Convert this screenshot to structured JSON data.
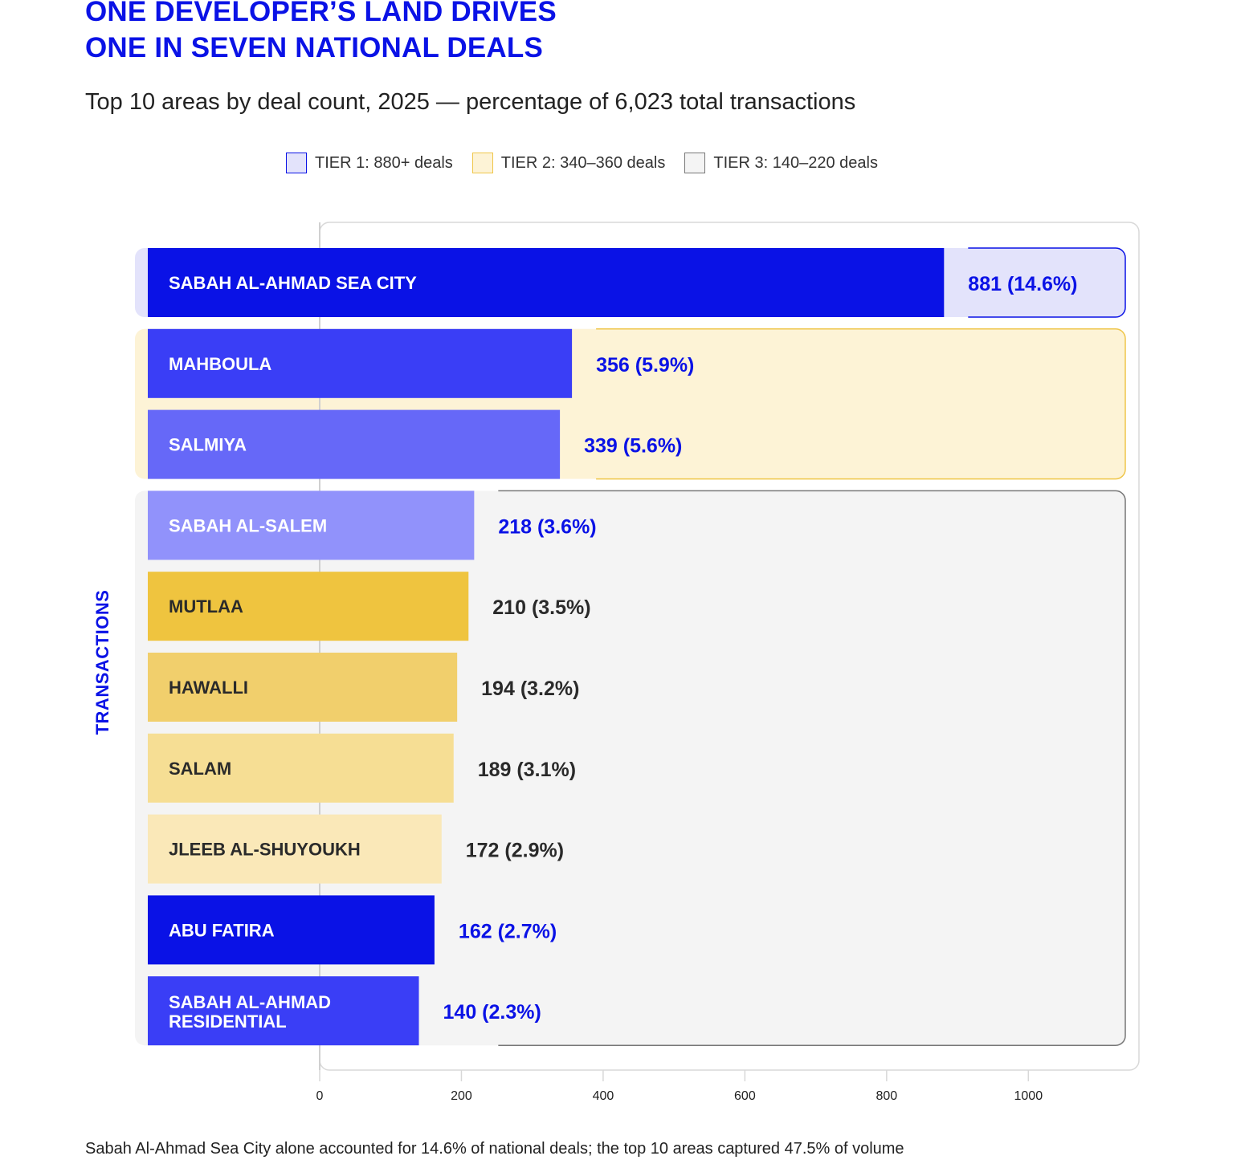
{
  "title_lines": [
    "ONE DEVELOPER’S LAND DRIVES",
    "ONE IN SEVEN NATIONAL DEALS"
  ],
  "subtitle": "Top 10 areas by deal count, 2025 — percentage of 6,023 total transactions",
  "legend": [
    {
      "label": "TIER 1: 880+ deals",
      "fill": "#e3e3fb",
      "border": "#0a12e6"
    },
    {
      "label": "TIER 2: 340–360 deals",
      "fill": "#fdf3d6",
      "border": "#efc64a"
    },
    {
      "label": "TIER 3: 140–220 deals",
      "fill": "#f4f4f4",
      "border": "#777777"
    }
  ],
  "footnote": "Sabah Al-Ahmad Sea City alone accounted for 14.6% of national deals; the top 10 areas captured 47.5% of volume",
  "chart_data": {
    "type": "bar",
    "orientation": "horizontal",
    "title": "ONE DEVELOPER’S LAND DRIVES ONE IN SEVEN NATIONAL DEALS",
    "subtitle": "Top 10 areas by deal count, 2025 — percentage of 6,023 total transactions",
    "ylabel": "TRANSACTIONS",
    "xlim": [
      0,
      1000
    ],
    "xticks": [
      0,
      200,
      400,
      600,
      800,
      1000
    ],
    "grid": false,
    "legend_position": "top",
    "categories": [
      [
        "SABAH AL-AHMAD SEA CITY"
      ],
      [
        "MAHBOULA"
      ],
      [
        "SALMIYA"
      ],
      [
        "SABAH AL-SALEM"
      ],
      [
        "MUTLAA"
      ],
      [
        "HAWALLI"
      ],
      [
        "SALAM"
      ],
      [
        "JLEEB AL-SHUYOUKH"
      ],
      [
        "ABU FATIRA"
      ],
      [
        "SABAH AL-AHMAD",
        "RESIDENTIAL"
      ]
    ],
    "values": [
      881,
      356,
      339,
      218,
      210,
      194,
      189,
      172,
      162,
      140
    ],
    "value_labels": [
      "881 (14.6%)",
      "356 (5.9%)",
      "339 (5.6%)",
      "218 (3.6%)",
      "210 (3.5%)",
      "194 (3.2%)",
      "189 (3.1%)",
      "172 (2.9%)",
      "162 (2.7%)",
      "140 (2.3%)"
    ],
    "bar_colors": [
      "#0a12e6",
      "#3a3ef6",
      "#6668f8",
      "#9192fb",
      "#efc43f",
      "#f1cf6c",
      "#f6de94",
      "#fae8b8",
      "#0a12e6",
      "#3a3ef6"
    ],
    "label_colors": [
      "#ffffff",
      "#ffffff",
      "#ffffff",
      "#ffffff",
      "#2a2a2a",
      "#2a2a2a",
      "#2a2a2a",
      "#2a2a2a",
      "#ffffff",
      "#ffffff"
    ],
    "value_colors": [
      "#0a12e6",
      "#0a12e6",
      "#0a12e6",
      "#0a12e6",
      "#2a2a2a",
      "#2a2a2a",
      "#2a2a2a",
      "#2a2a2a",
      "#0a12e6",
      "#0a12e6"
    ],
    "tiers": [
      {
        "name": "TIER 1: 880+ deals",
        "rows": [
          0,
          0
        ],
        "fill": "#e3e3fb",
        "border": "#0a12e6"
      },
      {
        "name": "TIER 2: 340–360 deals",
        "rows": [
          1,
          2
        ],
        "fill": "#fdf3d6",
        "border": "#efc64a"
      },
      {
        "name": "TIER 3: 140–220 deals",
        "rows": [
          3,
          9
        ],
        "fill": "#f4f4f4",
        "border": "#777777"
      }
    ]
  }
}
